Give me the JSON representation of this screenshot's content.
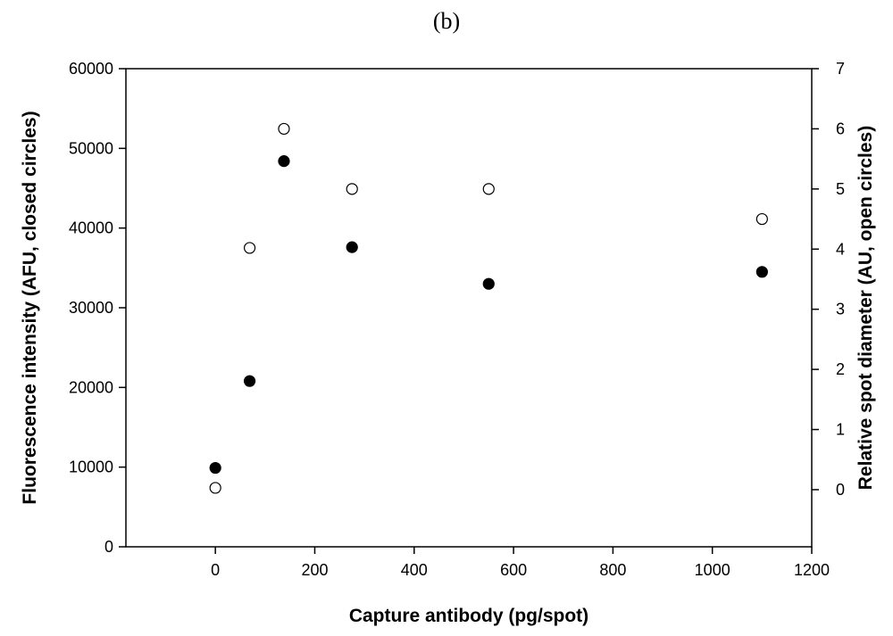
{
  "chart_data": {
    "type": "scatter",
    "panel_label": "(b)",
    "xlabel": "Capture antibody (pg/spot)",
    "ylabel": "Fluorescence intensity (AFU, closed circles)",
    "y2label": "Relative spot diameter (AU, open circles)",
    "xlim": [
      -180,
      1200
    ],
    "ylim": [
      0,
      60000
    ],
    "y2lim": [
      -0.95,
      7
    ],
    "xticks": [
      0,
      200,
      400,
      600,
      800,
      1000,
      1200
    ],
    "yticks": [
      0,
      10000,
      20000,
      30000,
      40000,
      50000,
      60000
    ],
    "y2ticks": [
      0,
      1,
      2,
      3,
      4,
      5,
      6,
      7
    ],
    "grid": false,
    "series": [
      {
        "marker": "closed-circle",
        "axis": "left",
        "x": [
          0,
          69,
          138,
          275,
          550,
          1100
        ],
        "y": [
          9900,
          20800,
          48400,
          37600,
          33000,
          34500
        ]
      },
      {
        "marker": "open-circle",
        "axis": "right",
        "x": [
          0,
          69,
          138,
          275,
          550,
          1100
        ],
        "y": [
          0.03,
          4.02,
          6.0,
          5.0,
          5.0,
          4.5
        ]
      }
    ]
  }
}
